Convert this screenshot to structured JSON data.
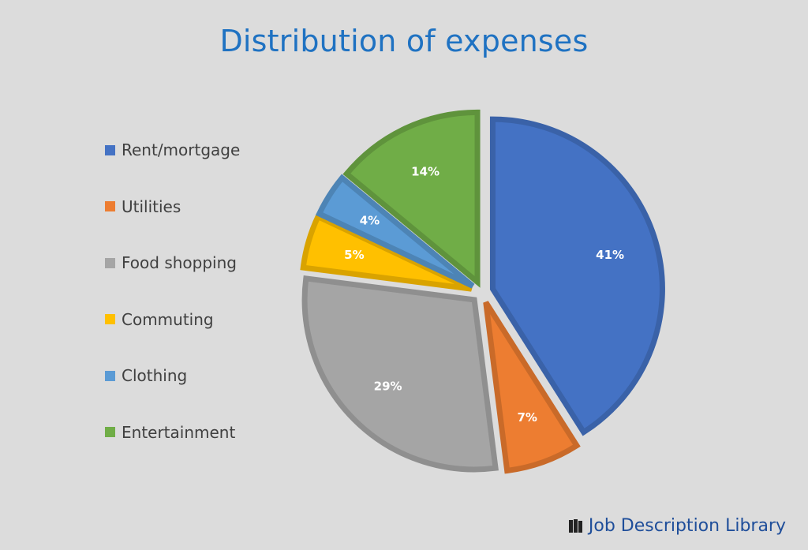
{
  "chart_data": {
    "type": "pie",
    "title": "Distribution of expenses",
    "categories": [
      "Rent/mortgage",
      "Utilities",
      "Food shopping",
      "Commuting",
      "Clothing",
      "Entertainment"
    ],
    "values": [
      41,
      7,
      29,
      5,
      4,
      14
    ],
    "labels": [
      "41%",
      "7%",
      "29%",
      "5%",
      "4%",
      "14%"
    ],
    "colors": [
      "#4472c4",
      "#ed7d31",
      "#a5a5a5",
      "#ffc000",
      "#5b9bd5",
      "#70ad47"
    ],
    "border_colors": [
      "#3a62a8",
      "#c96a29",
      "#8f8f8f",
      "#d9a300",
      "#4d84b5",
      "#5f933c"
    ],
    "legend_position": "left",
    "exploded": true
  },
  "brand": {
    "text": "Job Description Library",
    "logo_icon": "book-icon"
  }
}
